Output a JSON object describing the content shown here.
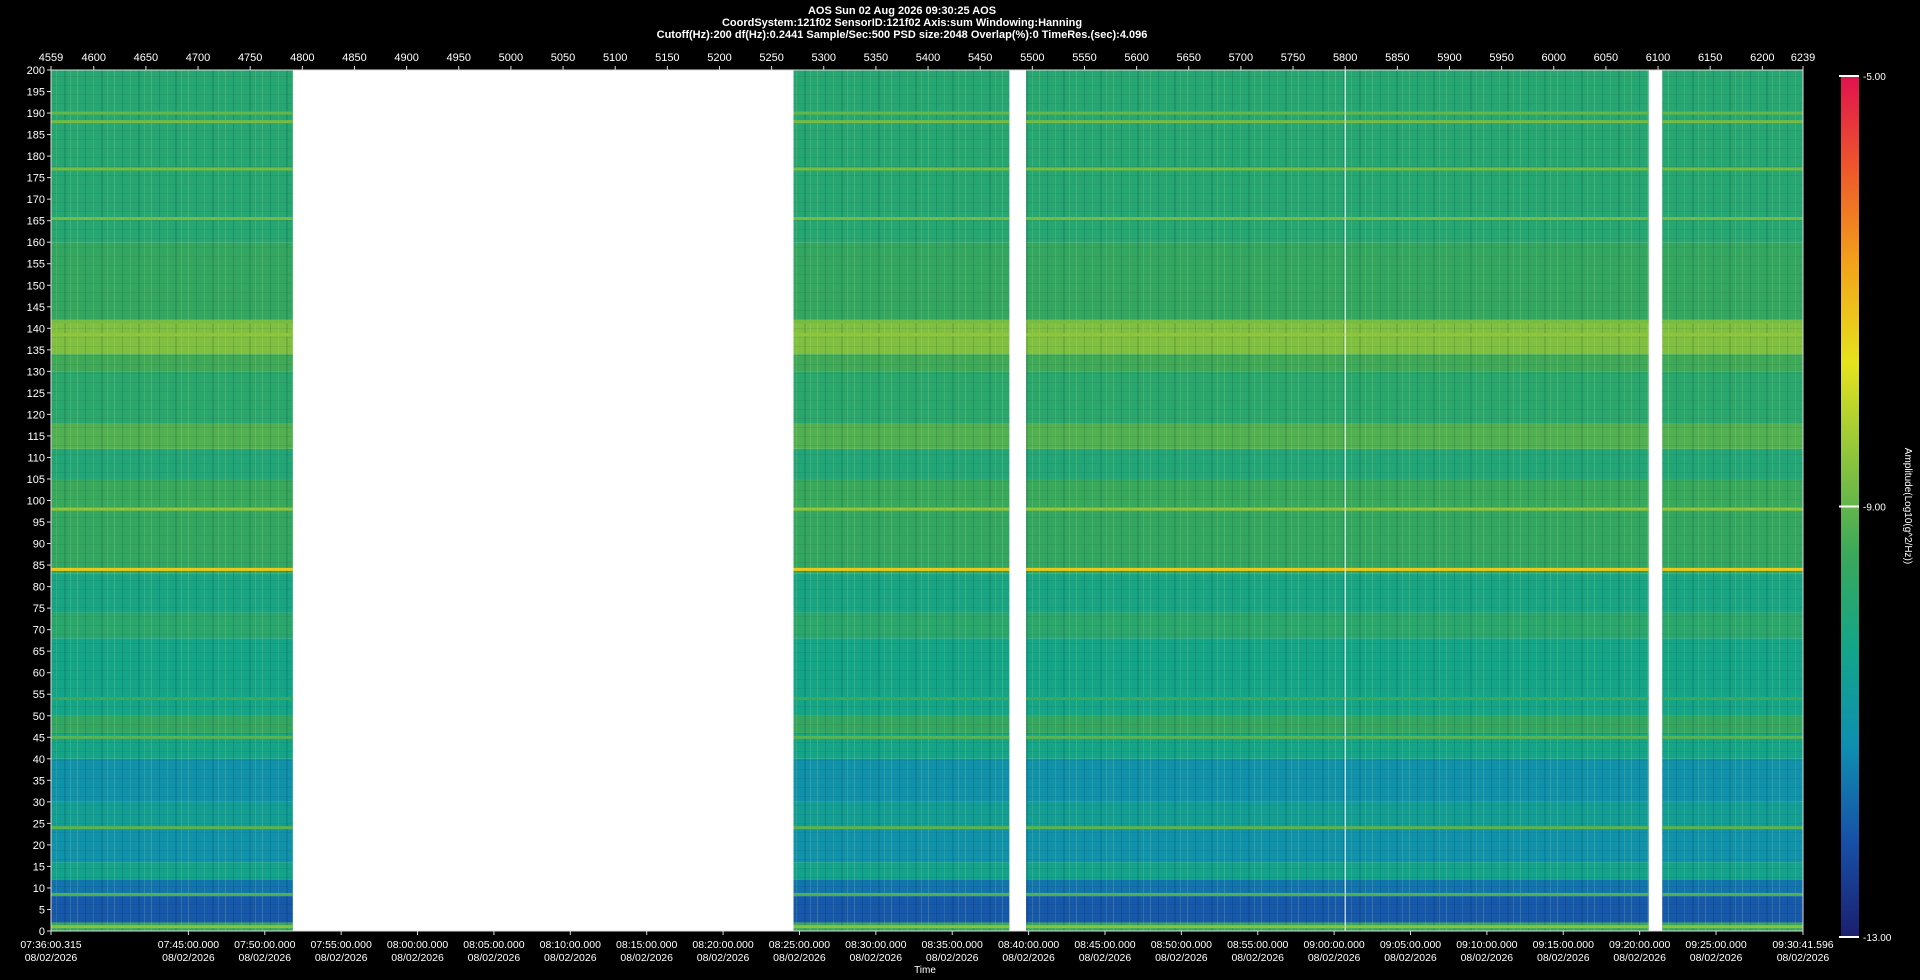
{
  "chart_data": {
    "type": "spectrogram",
    "title": [
      "AOS  Sun 02 Aug 2026 09:30:25  AOS",
      "CoordSystem:121f02   SensorID:121f02   Axis:sum   Windowing:Hanning",
      "Cutoff(Hz):200      df(Hz):0.2441      Sample/Sec:500      PSD size:2048      Overlap(%):0      TimeRes.(sec):4.096"
    ],
    "xlabel": "Time",
    "date": "08/02/2026",
    "colorbar_label": "Amplitude(Log10(g^2/Hz))",
    "xlim": [
      4559,
      6239
    ],
    "ylim": [
      0,
      200
    ],
    "zlim": [
      -13,
      -5
    ],
    "yticks": [
      0,
      5,
      10,
      15,
      20,
      25,
      30,
      35,
      40,
      45,
      50,
      55,
      60,
      65,
      70,
      75,
      80,
      85,
      90,
      95,
      100,
      105,
      110,
      115,
      120,
      125,
      130,
      135,
      140,
      145,
      150,
      155,
      160,
      165,
      170,
      175,
      180,
      185,
      190,
      195,
      200
    ],
    "x2ticks": [
      4559,
      4600,
      4650,
      4700,
      4750,
      4800,
      4850,
      4900,
      4950,
      5000,
      5050,
      5100,
      5150,
      5200,
      5250,
      5300,
      5350,
      5400,
      5450,
      5500,
      5550,
      5600,
      5650,
      5700,
      5750,
      5800,
      5850,
      5900,
      5950,
      6000,
      6050,
      6100,
      6150,
      6200,
      6239
    ],
    "xticks": [
      {
        "value": 4559,
        "label": "07:36:00.315"
      },
      {
        "value": 4690.76,
        "label": "07:45:00.000"
      },
      {
        "value": 4764.0,
        "label": "07:50:00.000"
      },
      {
        "value": 4837.24,
        "label": "07:55:00.000"
      },
      {
        "value": 4910.49,
        "label": "08:00:00.000"
      },
      {
        "value": 4983.73,
        "label": "08:05:00.000"
      },
      {
        "value": 5056.97,
        "label": "08:10:00.000"
      },
      {
        "value": 5130.21,
        "label": "08:15:00.000"
      },
      {
        "value": 5203.45,
        "label": "08:20:00.000"
      },
      {
        "value": 5276.7,
        "label": "08:25:00.000"
      },
      {
        "value": 5349.94,
        "label": "08:30:00.000"
      },
      {
        "value": 5423.18,
        "label": "08:35:00.000"
      },
      {
        "value": 5496.42,
        "label": "08:40:00.000"
      },
      {
        "value": 5569.66,
        "label": "08:45:00.000"
      },
      {
        "value": 5642.91,
        "label": "08:50:00.000"
      },
      {
        "value": 5716.15,
        "label": "08:55:00.000"
      },
      {
        "value": 5789.39,
        "label": "09:00:00.000"
      },
      {
        "value": 5862.63,
        "label": "09:05:00.000"
      },
      {
        "value": 5935.87,
        "label": "09:10:00.000"
      },
      {
        "value": 6009.12,
        "label": "09:15:00.000"
      },
      {
        "value": 6082.36,
        "label": "09:20:00.000"
      },
      {
        "value": 6155.6,
        "label": "09:25:00.000"
      },
      {
        "value": 6239,
        "label": "09:30:41.596"
      }
    ],
    "zticks": [
      {
        "value": -5,
        "label": "-5.00"
      },
      {
        "value": -9,
        "label": "-9.00"
      },
      {
        "value": -13,
        "label": "-13.00"
      }
    ],
    "colorscale": [
      "#1b1f6e",
      "#1750a8",
      "#0f8fb0",
      "#13a58a",
      "#3aa85a",
      "#8cc43c",
      "#e6e31e",
      "#f2a51a",
      "#ee5a2a",
      "#e0124e"
    ],
    "segments": [
      [
        4559,
        4791
      ],
      [
        5271,
        5478
      ],
      [
        5494,
        5799.5
      ],
      [
        5800.5,
        6091
      ],
      [
        6104,
        6239
      ]
    ],
    "bands": [
      {
        "from": 0,
        "to": 2,
        "level": -9.6
      },
      {
        "from": 2,
        "to": 8,
        "level": -12
      },
      {
        "from": 8,
        "to": 12,
        "level": -11.6
      },
      {
        "from": 12,
        "to": 16,
        "level": -10.4
      },
      {
        "from": 16,
        "to": 24,
        "level": -11.1
      },
      {
        "from": 24,
        "to": 30,
        "level": -10.6
      },
      {
        "from": 30,
        "to": 40,
        "level": -11.1
      },
      {
        "from": 40,
        "to": 46,
        "level": -10.3
      },
      {
        "from": 46,
        "to": 50,
        "level": -9.6
      },
      {
        "from": 50,
        "to": 68,
        "level": -10.3
      },
      {
        "from": 68,
        "to": 74,
        "level": -9.8
      },
      {
        "from": 74,
        "to": 83,
        "level": -10.2
      },
      {
        "from": 83,
        "to": 98,
        "level": -9.6
      },
      {
        "from": 98,
        "to": 105,
        "level": -9.5
      },
      {
        "from": 105,
        "to": 112,
        "level": -10
      },
      {
        "from": 112,
        "to": 118,
        "level": -9.2
      },
      {
        "from": 118,
        "to": 130,
        "level": -9.8
      },
      {
        "from": 130,
        "to": 134,
        "level": -9.4
      },
      {
        "from": 134,
        "to": 142,
        "level": -8.7
      },
      {
        "from": 142,
        "to": 160,
        "level": -9.6
      },
      {
        "from": 160,
        "to": 200,
        "level": -9.9
      }
    ],
    "lines": [
      {
        "freq": 1,
        "level": -8.6
      },
      {
        "freq": 8.5,
        "level": -9.2
      },
      {
        "freq": 24,
        "level": -9.1
      },
      {
        "freq": 45,
        "level": -9.1
      },
      {
        "freq": 54,
        "level": -9.4
      },
      {
        "freq": 84,
        "level": -7.3
      },
      {
        "freq": 98,
        "level": -8.5
      },
      {
        "freq": 138.5,
        "level": -8.5
      },
      {
        "freq": 141.5,
        "level": -8.8
      },
      {
        "freq": 165.5,
        "level": -8.8
      },
      {
        "freq": 177,
        "level": -8.8
      },
      {
        "freq": 188,
        "level": -8.8
      },
      {
        "freq": 190,
        "level": -9
      }
    ]
  }
}
